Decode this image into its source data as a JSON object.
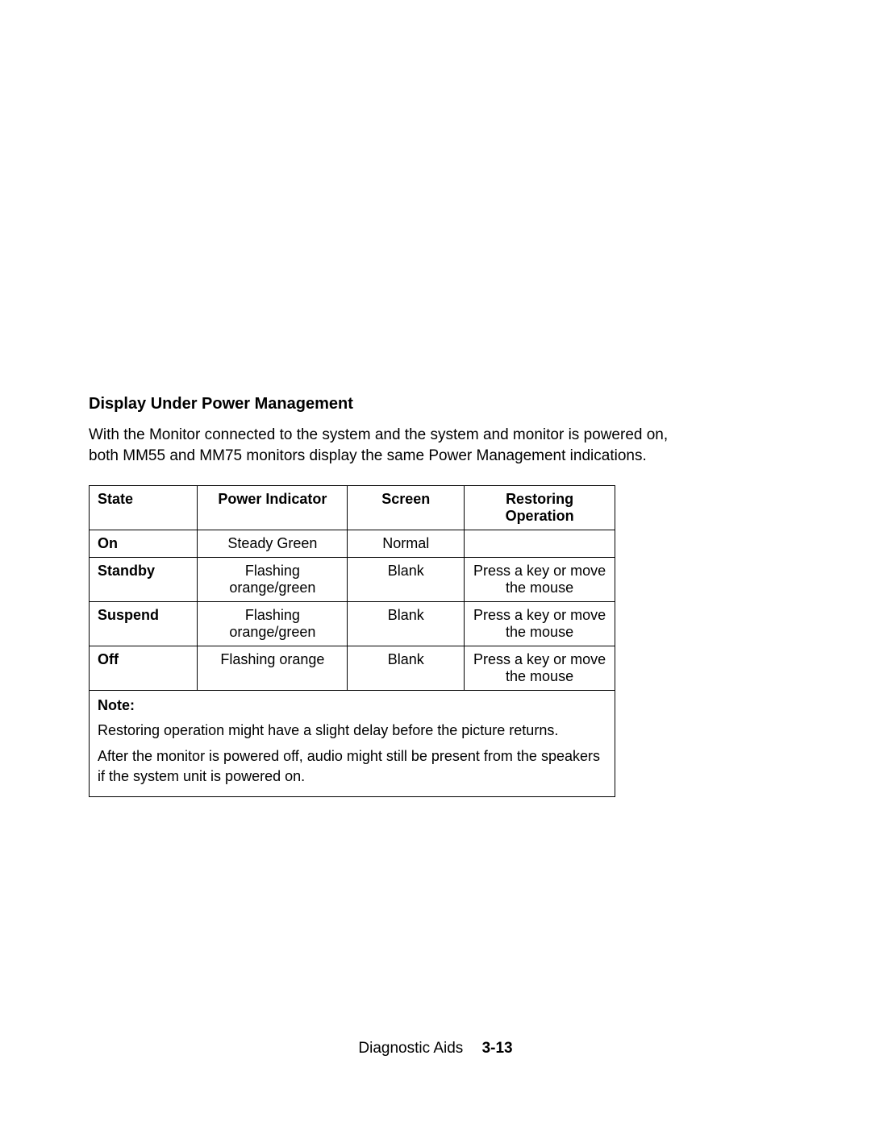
{
  "heading": "Display Under Power Management",
  "intro": "With the Monitor connected to the system and the system and monitor is powered on, both MM55 and MM75 monitors display the same Power Management indications.",
  "table": {
    "columns": [
      "State",
      "Power Indicator",
      "Screen",
      "Restoring Operation"
    ],
    "rows": [
      {
        "state": "On",
        "power": "Steady Green",
        "screen": "Normal",
        "restore": ""
      },
      {
        "state": "Standby",
        "power": "Flashing orange/green",
        "screen": "Blank",
        "restore": "Press a key or move the mouse"
      },
      {
        "state": "Suspend",
        "power": "Flashing orange/green",
        "screen": "Blank",
        "restore": "Press a key or move the mouse"
      },
      {
        "state": "Off",
        "power": "Flashing orange",
        "screen": "Blank",
        "restore": "Press a key or move the mouse"
      }
    ],
    "note_label": "Note:",
    "note_lines": [
      "Restoring operation might have a slight delay before the picture returns.",
      "After the monitor is powered off, audio might still be present from the speakers if the system unit is powered on."
    ]
  },
  "footer": {
    "section": "Diagnostic Aids",
    "page": "3-13"
  }
}
